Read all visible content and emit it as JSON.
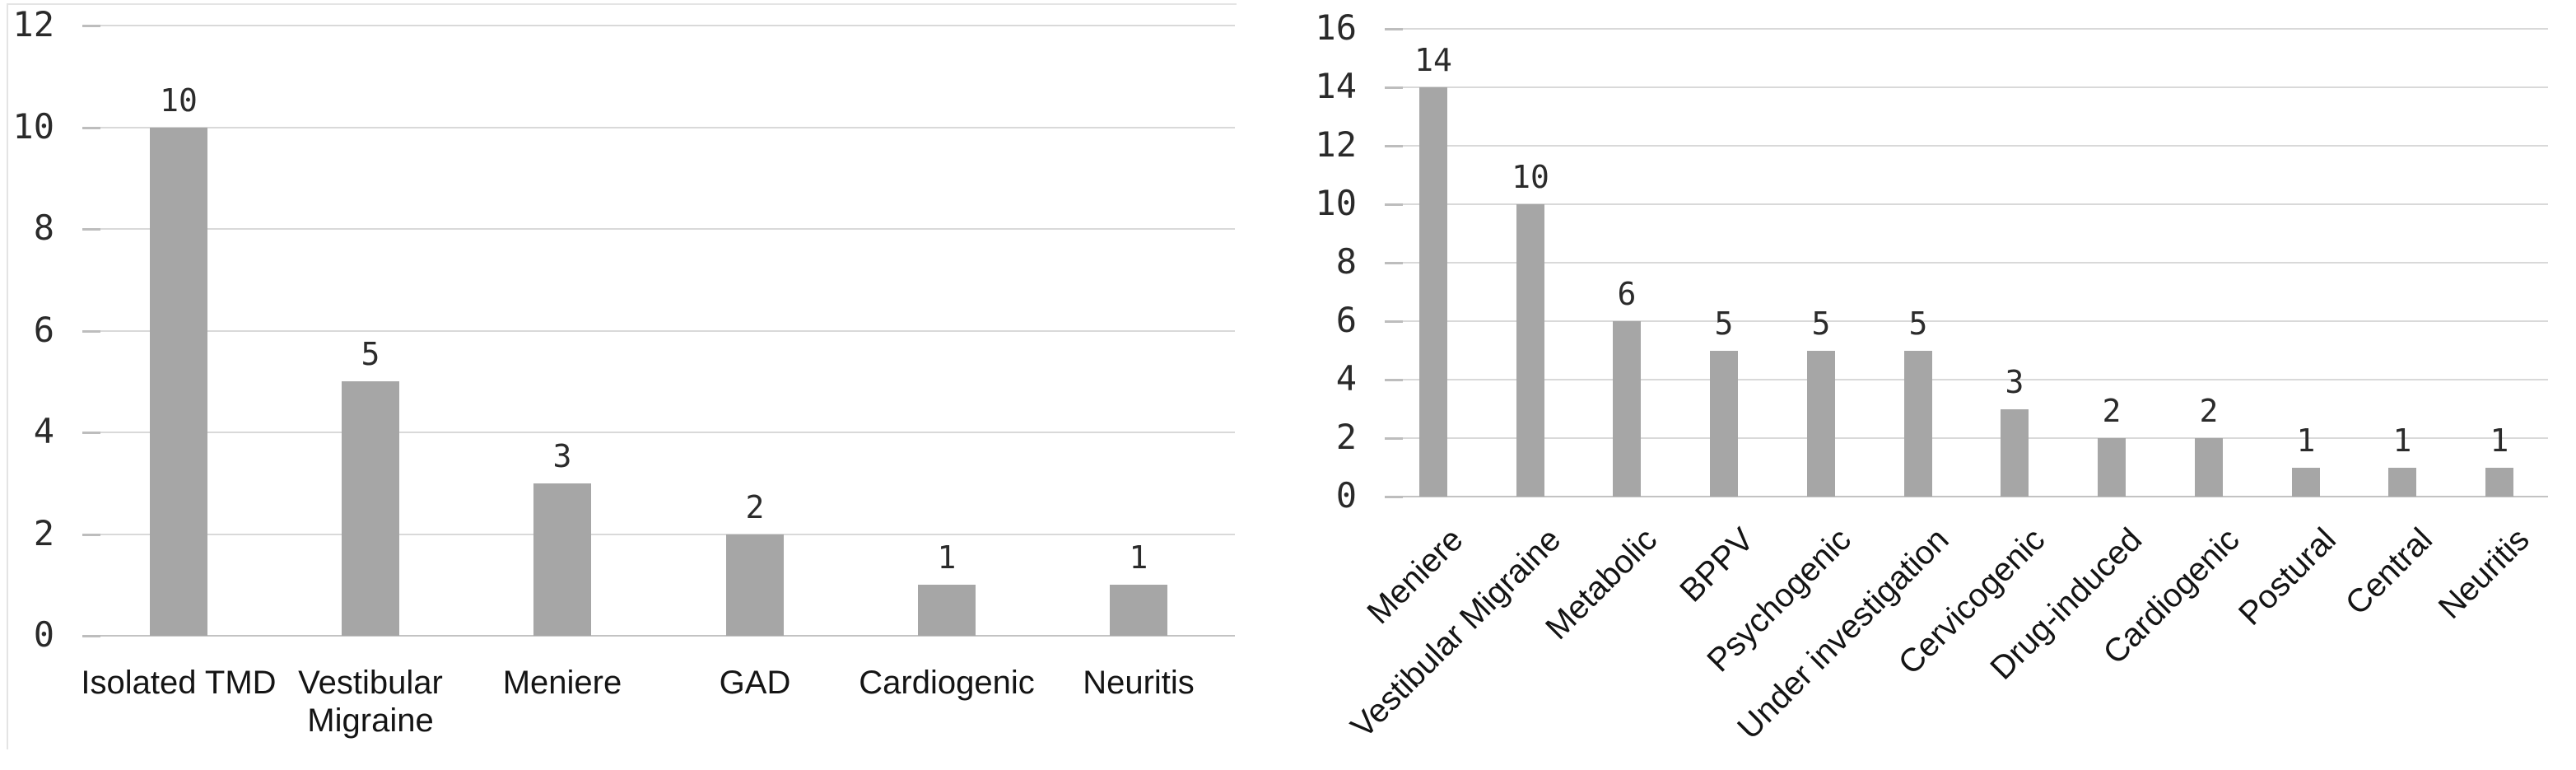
{
  "page": {
    "background": "#ffffff"
  },
  "chart_data": [
    {
      "type": "bar",
      "title": "",
      "categories": [
        "Isolated TMD",
        "Vestibular Migraine",
        "Meniere",
        "GAD",
        "Cardiogenic",
        "Neuritis"
      ],
      "values": [
        10,
        5,
        3,
        2,
        1,
        1
      ],
      "ylim": [
        0,
        12
      ],
      "yticks": [
        0,
        2,
        4,
        6,
        8,
        10,
        12
      ],
      "ytick_step": 2,
      "grid": true,
      "legend": false,
      "x_label_rotation": 0,
      "bar_color": "#a6a6a6",
      "gridline_color": "#d9d9d9",
      "axis_line_color": "#c3c3c3",
      "tick_color": "#bdbdbd",
      "value_label_color": "#2b2b2b",
      "axis_number_color": "#2a2a2a",
      "category_label_color": "#141414"
    },
    {
      "type": "bar",
      "title": "",
      "categories": [
        "Meniere",
        "Vestibular Migraine",
        "Metabolic",
        "BPPV",
        "Psychogenic",
        "Under investigation",
        "Cervicogenic",
        "Drug-induced",
        "Cardiogenic",
        "Postural",
        "Central",
        "Neuritis"
      ],
      "values": [
        14,
        10,
        6,
        5,
        5,
        5,
        3,
        2,
        2,
        1,
        1,
        1
      ],
      "ylim": [
        0,
        16
      ],
      "yticks": [
        0,
        2,
        4,
        6,
        8,
        10,
        12,
        14,
        16
      ],
      "ytick_step": 2,
      "grid": true,
      "legend": false,
      "x_label_rotation": -45,
      "bar_color": "#a6a6a6",
      "gridline_color": "#d9d9d9",
      "axis_line_color": "#c3c3c3",
      "tick_color": "#bdbdbd",
      "value_label_color": "#2b2b2b",
      "axis_number_color": "#2a2a2a",
      "category_label_color": "#141414"
    }
  ]
}
